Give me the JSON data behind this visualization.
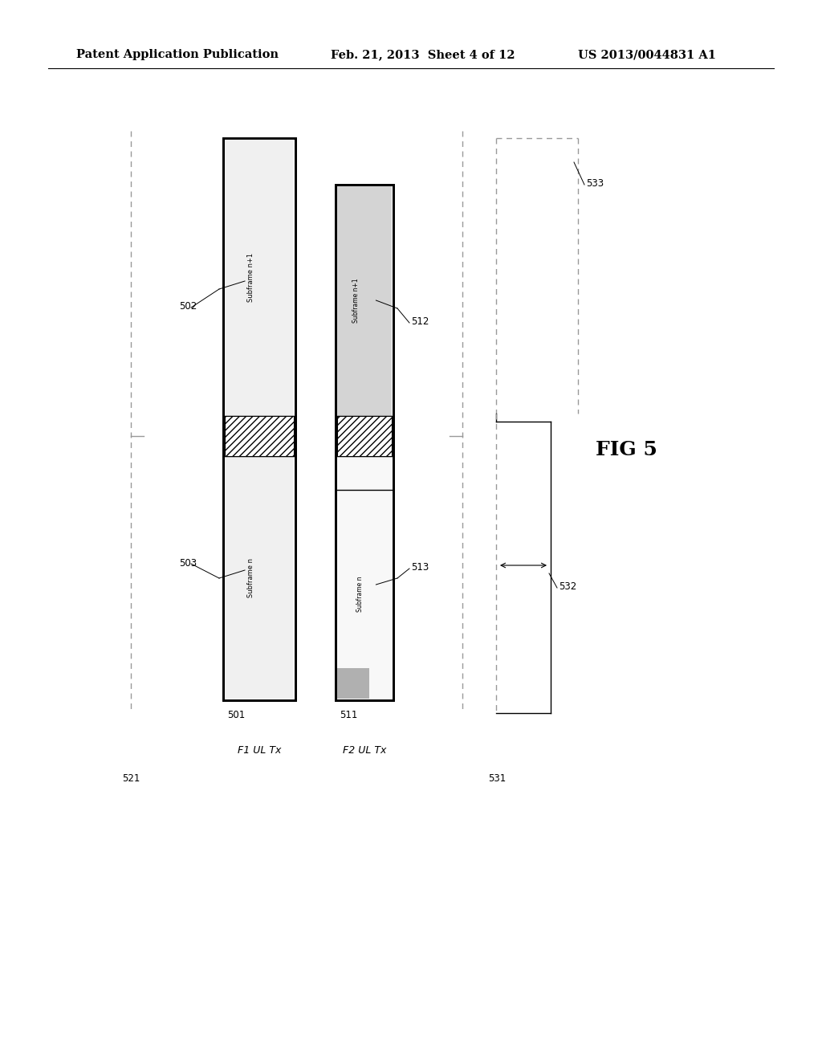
{
  "header_left": "Patent Application Publication",
  "header_mid": "Feb. 21, 2013  Sheet 4 of 12",
  "header_right": "US 2013/0044831 A1",
  "fig_label": "FIG 5",
  "bg_color": "#ffffff",
  "line_color": "#000000",
  "dashed_color": "#999999",
  "label_501": "501",
  "label_502": "502",
  "label_503": "503",
  "label_511": "511",
  "label_512": "512",
  "label_513": "513",
  "label_521": "521",
  "label_531": "531",
  "label_532": "532",
  "label_533": "533",
  "label_f1": "F1 UL Tx",
  "label_f2": "F2 UL Tx",
  "subframe_n": "Subframe n",
  "subframe_n1": "Subframe n+1"
}
